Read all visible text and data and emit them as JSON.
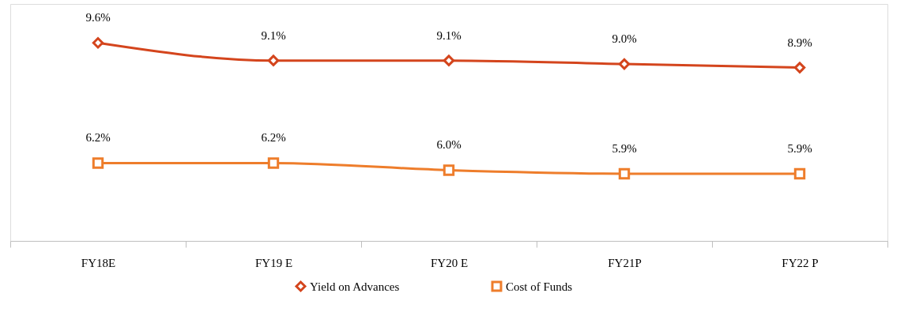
{
  "chart_data": {
    "type": "line",
    "categories": [
      "FY18E",
      "FY19 E",
      "FY20 E",
      "FY21P",
      "FY22 P"
    ],
    "series": [
      {
        "name": "Yield on Advances",
        "color": "#d4451d",
        "marker": "diamond",
        "values": [
          9.6,
          9.1,
          9.1,
          9.0,
          8.9
        ],
        "value_labels": [
          "9.6%",
          "9.1%",
          "9.1%",
          "9.0%",
          "8.9%"
        ]
      },
      {
        "name": "Cost of Funds",
        "color": "#ee7d2b",
        "marker": "square",
        "values": [
          6.2,
          6.2,
          6.0,
          5.9,
          5.9
        ],
        "value_labels": [
          "6.2%",
          "6.2%",
          "6.0%",
          "5.9%",
          "5.9%"
        ]
      }
    ],
    "ylim": [
      4,
      10.7
    ],
    "tick_labels": "x",
    "grid": false,
    "legend": "bottom",
    "line_style": "solid"
  }
}
